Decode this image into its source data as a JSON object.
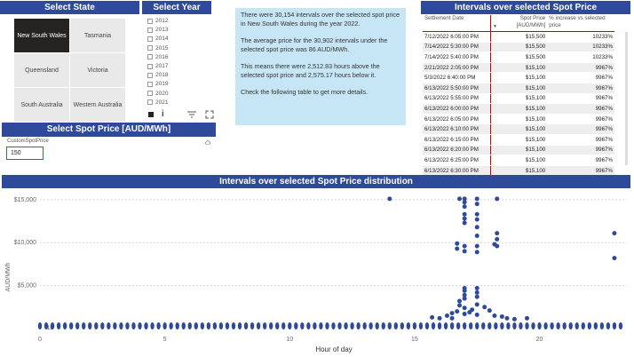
{
  "state_panel": {
    "title": "Select State",
    "states": [
      {
        "label": "New South Wales",
        "selected": true
      },
      {
        "label": "Tasmania",
        "selected": false
      },
      {
        "label": "Queensland",
        "selected": false
      },
      {
        "label": "Victoria",
        "selected": false
      },
      {
        "label": "South Australia",
        "selected": false
      },
      {
        "label": "Western Australia",
        "selected": false
      }
    ]
  },
  "year_panel": {
    "title": "Select Year",
    "years": [
      "2012",
      "2013",
      "2014",
      "2015",
      "2016",
      "2017",
      "2018",
      "2019",
      "2020",
      "2021"
    ]
  },
  "price_panel": {
    "title": "Select Spot Price [AUD/MWh]",
    "field_label": "CustomSpotPrice",
    "value": "150"
  },
  "summary": {
    "p1": "There were 30,154 intervals over the selected spot price in New South Wales during the year 2022.",
    "p2": "The average price for the 30,902 intervals under the selected spot price was 86 AUD/MWh.",
    "p3": "This means there were 2,512.83 hours above the selected spot price and 2,575.17 hours below it.",
    "p4": "Check the following table to get more details."
  },
  "table": {
    "title": "Intervals over selected Spot Price",
    "headers": [
      "Settlement Date",
      "Spot Price [AUD/MWh]",
      "% increase vs selected price"
    ],
    "rows": [
      [
        "7/12/2022 6:05:00 PM",
        "$15,500",
        "10233%"
      ],
      [
        "7/14/2022 5:30:00 PM",
        "$15,500",
        "10233%"
      ],
      [
        "7/14/2022 5:40:00 PM",
        "$15,500",
        "10233%"
      ],
      [
        "2/21/2022 2:05:00 PM",
        "$15,100",
        "9967%"
      ],
      [
        "5/3/2022 6:40:00 PM",
        "$15,100",
        "9967%"
      ],
      [
        "6/13/2022 5:50:00 PM",
        "$15,100",
        "9967%"
      ],
      [
        "6/13/2022 5:55:00 PM",
        "$15,100",
        "9967%"
      ],
      [
        "6/13/2022 6:00:00 PM",
        "$15,100",
        "9967%"
      ],
      [
        "6/13/2022 6:05:00 PM",
        "$15,100",
        "9967%"
      ],
      [
        "6/13/2022 6:10:00 PM",
        "$15,100",
        "9967%"
      ],
      [
        "6/13/2022 6:15:00 PM",
        "$15,100",
        "9967%"
      ],
      [
        "6/13/2022 6:20:00 PM",
        "$15,100",
        "9967%"
      ],
      [
        "6/13/2022 6:25:00 PM",
        "$15,100",
        "9967%"
      ],
      [
        "6/13/2022 6:30:00 PM",
        "$15,100",
        "9967%"
      ]
    ]
  },
  "chart_data": {
    "type": "scatter",
    "title": "Intervals over selected Spot Price distribution",
    "xlabel": "Hour of day",
    "ylabel": "AUD/MWh",
    "xlim": [
      0,
      23.5
    ],
    "ylim": [
      0,
      15500
    ],
    "x_ticks": [
      0,
      5,
      10,
      15,
      20
    ],
    "y_ticks": [
      {
        "value": 5000,
        "label": "$5,000"
      },
      {
        "value": 10000,
        "label": "$10,000"
      },
      {
        "value": 15000,
        "label": "$15,000"
      }
    ],
    "color": "#2f4a9a",
    "baseline_label": "15",
    "points": [
      [
        14,
        15100
      ],
      [
        16.8,
        15100
      ],
      [
        17,
        15100
      ],
      [
        17,
        14700
      ],
      [
        17,
        14200
      ],
      [
        17,
        13300
      ],
      [
        17,
        12800
      ],
      [
        17,
        12300
      ],
      [
        17.5,
        15100
      ],
      [
        17.5,
        14500
      ],
      [
        17.5,
        13300
      ],
      [
        17.5,
        12700
      ],
      [
        17.5,
        11800
      ],
      [
        17.5,
        10800
      ],
      [
        18.3,
        15100
      ],
      [
        18.3,
        11100
      ],
      [
        18.3,
        10400
      ],
      [
        18.2,
        9800
      ],
      [
        18.3,
        9600
      ],
      [
        16.7,
        9900
      ],
      [
        16.7,
        9300
      ],
      [
        17,
        9600
      ],
      [
        17,
        9000
      ],
      [
        17.5,
        9600
      ],
      [
        17.5,
        8900
      ],
      [
        23,
        11100
      ],
      [
        23,
        8200
      ],
      [
        17,
        4700
      ],
      [
        17,
        4400
      ],
      [
        17,
        3900
      ],
      [
        17,
        3500
      ],
      [
        17.5,
        4700
      ],
      [
        17.5,
        4200
      ],
      [
        17.5,
        3700
      ],
      [
        16.8,
        3200
      ],
      [
        16.8,
        2700
      ],
      [
        17,
        2400
      ],
      [
        17.3,
        2200
      ],
      [
        17.5,
        2800
      ],
      [
        17.8,
        2500
      ],
      [
        18,
        2100
      ],
      [
        16.5,
        1800
      ],
      [
        16.7,
        2000
      ],
      [
        17,
        1700
      ],
      [
        17.2,
        1900
      ],
      [
        17.5,
        1600
      ],
      [
        18.2,
        1500
      ],
      [
        18.5,
        1400
      ],
      [
        15.7,
        1300
      ],
      [
        16,
        1200
      ],
      [
        16.3,
        1500
      ],
      [
        16.5,
        1200
      ],
      [
        18.7,
        1200
      ],
      [
        19,
        1100
      ],
      [
        19.5,
        1200
      ]
    ]
  },
  "colors": {
    "accent": "#2f4a9a",
    "info_bg": "#c7e6f5",
    "table_rule": "#cc0000"
  },
  "icons": [
    "filter-icon",
    "focus-mode-icon",
    "info-icon",
    "eraser-icon"
  ]
}
